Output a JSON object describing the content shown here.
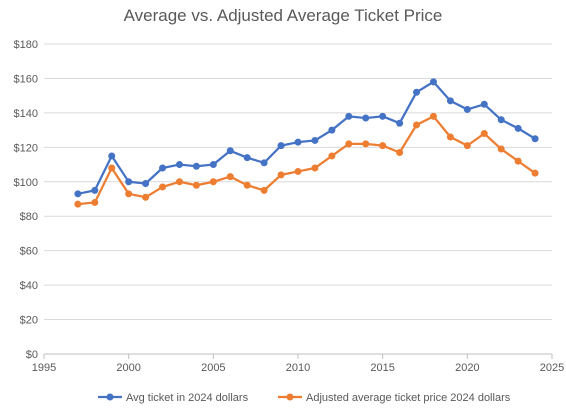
{
  "chart_data": {
    "type": "line",
    "title": "Average vs. Adjusted Average Ticket Price",
    "xlabel": "",
    "ylabel": "",
    "xlim": [
      1995,
      2025
    ],
    "ylim": [
      0,
      180
    ],
    "x_ticks": [
      1995,
      2000,
      2005,
      2010,
      2015,
      2020,
      2025
    ],
    "y_ticks": [
      0,
      20,
      40,
      60,
      80,
      100,
      120,
      140,
      160,
      180
    ],
    "y_tick_labels": [
      "$0",
      "$20",
      "$40",
      "$60",
      "$80",
      "$100",
      "$120",
      "$140",
      "$160",
      "$180"
    ],
    "grid": "horizontal",
    "legend_position": "bottom",
    "x": [
      1997,
      1998,
      1999,
      2000,
      2001,
      2002,
      2003,
      2004,
      2005,
      2006,
      2007,
      2008,
      2009,
      2010,
      2011,
      2012,
      2013,
      2014,
      2015,
      2016,
      2017,
      2018,
      2019,
      2020,
      2021,
      2022,
      2023,
      2024
    ],
    "series": [
      {
        "name": "Avg ticket in 2024 dollars",
        "color": "#4472C4",
        "values": [
          93,
          95,
          115,
          100,
          99,
          108,
          110,
          109,
          110,
          118,
          114,
          111,
          121,
          123,
          124,
          130,
          138,
          137,
          138,
          134,
          152,
          158,
          147,
          142,
          145,
          136,
          131,
          125
        ]
      },
      {
        "name": "Adjusted average ticket price 2024 dollars",
        "color": "#ED7D31",
        "values": [
          87,
          88,
          108,
          93,
          91,
          97,
          100,
          98,
          100,
          103,
          98,
          95,
          104,
          106,
          108,
          115,
          122,
          122,
          121,
          117,
          133,
          138,
          126,
          121,
          128,
          119,
          112,
          105
        ]
      }
    ]
  }
}
